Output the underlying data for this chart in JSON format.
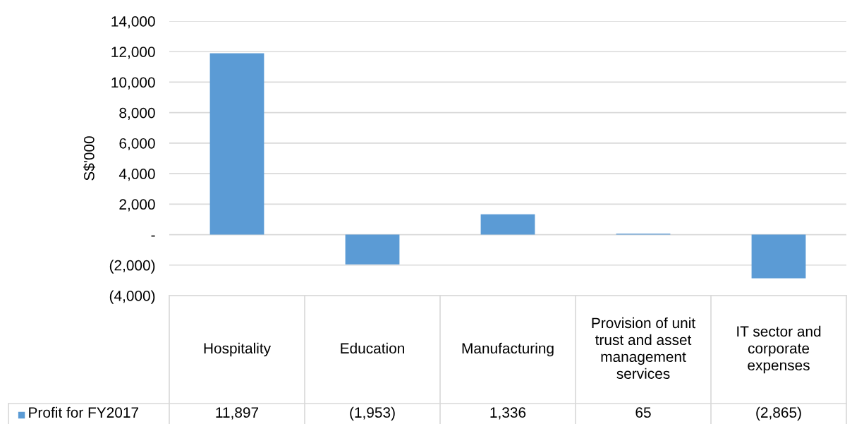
{
  "chart_data": {
    "type": "bar",
    "ylabel": "S$'000",
    "categories": [
      "Hospitality",
      "Education",
      "Manufacturing",
      "Provision of unit trust and asset management services",
      "IT sector and corporate expenses"
    ],
    "series": [
      {
        "name": "Profit for FY2017",
        "color": "#5b9bd5",
        "values": [
          11897,
          -1953,
          1336,
          65,
          -2865
        ],
        "value_labels": [
          "11,897",
          "(1,953)",
          "1,336",
          "65",
          "(2,865)"
        ]
      }
    ],
    "ylim": [
      -4000,
      14000
    ],
    "yticks": [
      {
        "value": -4000,
        "label": "(4,000)"
      },
      {
        "value": -2000,
        "label": "(2,000)"
      },
      {
        "value": 0,
        "label": "-"
      },
      {
        "value": 2000,
        "label": "2,000"
      },
      {
        "value": 4000,
        "label": "4,000"
      },
      {
        "value": 6000,
        "label": "6,000"
      },
      {
        "value": 8000,
        "label": "8,000"
      },
      {
        "value": 10000,
        "label": "10,000"
      },
      {
        "value": 12000,
        "label": "12,000"
      },
      {
        "value": 14000,
        "label": "14,000"
      }
    ],
    "grid": "y",
    "legend": "bottom"
  }
}
